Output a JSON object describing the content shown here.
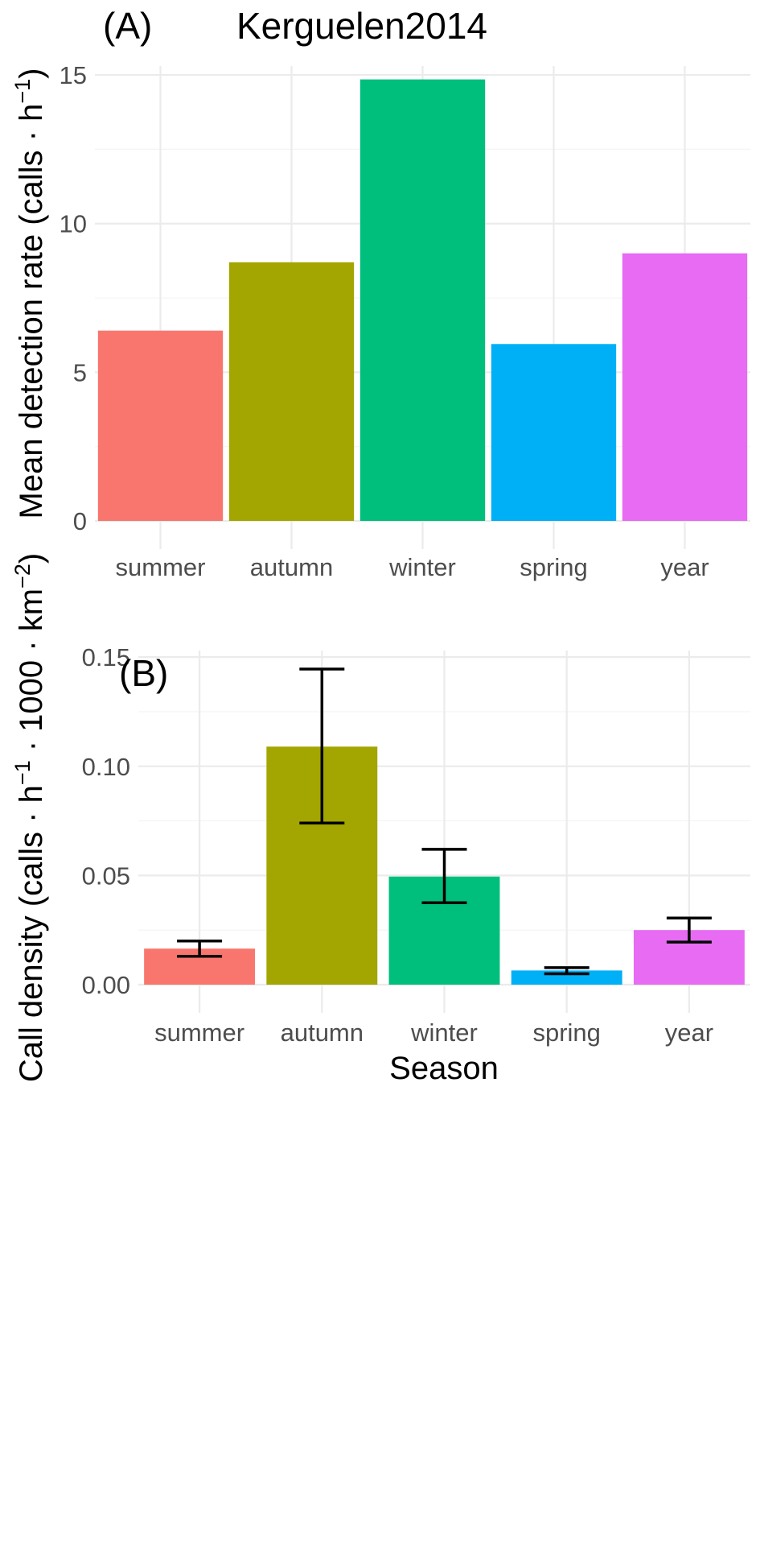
{
  "colors": {
    "summer": "#F8766D",
    "autumn": "#A3A500",
    "winter": "#00BF7D",
    "spring": "#00B0F6",
    "year": "#E76BF3"
  },
  "chart_data": [
    {
      "type": "bar",
      "panel_label": "(A)",
      "title": "Kerguelen2014",
      "xlabel": "",
      "ylabel_prefix": "Mean detection rate (calls · h",
      "ylabel_sup": "−1",
      "ylabel_suffix": ")",
      "categories": [
        "summer",
        "autumn",
        "winter",
        "spring",
        "year"
      ],
      "values": [
        6.4,
        8.7,
        14.85,
        5.95,
        9.0
      ],
      "ylim": [
        0,
        15.3
      ],
      "yticks": [
        0,
        5,
        10,
        15
      ],
      "ytick_labels": [
        "0",
        "5",
        "10",
        "15"
      ],
      "grid": true
    },
    {
      "type": "bar",
      "panel_label": "(B)",
      "title": "",
      "xlabel": "Season",
      "ylabel_parts": [
        {
          "t": "Call density (calls · h"
        },
        {
          "t": "−1",
          "sup": true
        },
        {
          "t": " · 1000 · km"
        },
        {
          "t": "−2",
          "sup": true
        },
        {
          "t": ")"
        }
      ],
      "categories": [
        "summer",
        "autumn",
        "winter",
        "spring",
        "year"
      ],
      "values": [
        0.0165,
        0.109,
        0.0495,
        0.0065,
        0.025
      ],
      "error_low": [
        0.013,
        0.074,
        0.0375,
        0.005,
        0.0195
      ],
      "error_high": [
        0.02,
        0.1445,
        0.062,
        0.0078,
        0.0305
      ],
      "ylim": [
        0,
        0.153
      ],
      "yticks": [
        0,
        0.05,
        0.1,
        0.15
      ],
      "ytick_labels": [
        "0.00",
        "0.05",
        "0.10",
        "0.15"
      ],
      "grid": true
    }
  ]
}
